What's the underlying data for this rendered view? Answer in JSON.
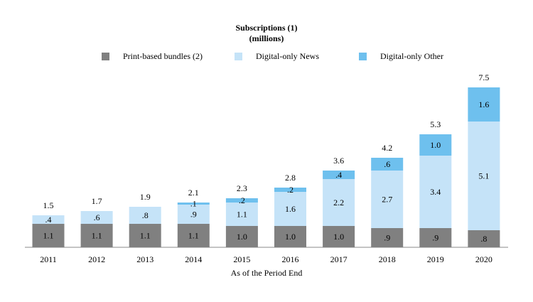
{
  "chart_data": {
    "type": "stacked-bar",
    "title": "Subscriptions (1)",
    "subtitle": "(millions)",
    "x_label": "As of the Period End",
    "categories": [
      "2011",
      "2012",
      "2013",
      "2014",
      "2015",
      "2016",
      "2017",
      "2018",
      "2019",
      "2020"
    ],
    "series": [
      {
        "name": "Print-based bundles (2)",
        "color": "#808080",
        "values": [
          1.1,
          1.1,
          1.1,
          1.1,
          1.0,
          1.0,
          1.0,
          0.9,
          0.9,
          0.8
        ],
        "value_labels": [
          "1.1",
          "1.1",
          "1.1",
          "1.1",
          "1.0",
          "1.0",
          "1.0",
          ".9",
          ".9",
          ".8"
        ]
      },
      {
        "name": "Digital-only News",
        "color": "#c5e3f8",
        "values": [
          0.4,
          0.6,
          0.8,
          0.9,
          1.1,
          1.6,
          2.2,
          2.7,
          3.4,
          5.1
        ],
        "value_labels": [
          ".4",
          ".6",
          ".8",
          ".9",
          "1.1",
          "1.6",
          "2.2",
          "2.7",
          "3.4",
          "5.1"
        ]
      },
      {
        "name": "Digital-only Other",
        "color": "#6ec0ee",
        "values": [
          null,
          null,
          null,
          0.1,
          0.2,
          0.2,
          0.4,
          0.6,
          1.0,
          1.6
        ],
        "value_labels": [
          null,
          null,
          null,
          ".1",
          ".2",
          ".2",
          ".4",
          ".6",
          "1.0",
          "1.6"
        ]
      }
    ],
    "totals": [
      1.5,
      1.7,
      1.9,
      2.1,
      2.3,
      2.8,
      3.6,
      4.2,
      5.3,
      7.5
    ]
  }
}
